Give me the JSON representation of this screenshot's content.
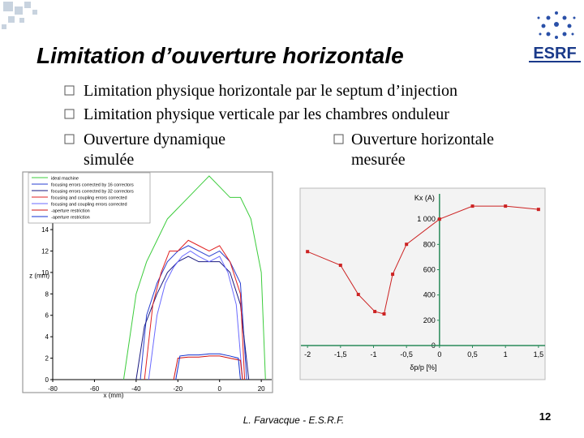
{
  "slide": {
    "logo": "ESRF",
    "title": "Limitation d’ouverture horizontale",
    "bullets": [
      "Limitation physique horizontale par le septum d’injection",
      "Limitation physique verticale par les chambres onduleur"
    ],
    "columns": [
      [
        "Ouverture dynamique",
        "simulée"
      ],
      [
        "Ouverture horizontale",
        "mesurée"
      ]
    ],
    "footer": "L. Farvacque - E.S.R.F.",
    "page": "12"
  },
  "chart_data": [
    {
      "type": "line",
      "xlabel": "x (mm)",
      "ylabel": "z (mm)",
      "xlim": [
        -80,
        25
      ],
      "ylim": [
        0,
        19
      ],
      "xticks": [
        -80,
        -60,
        -40,
        -20,
        0,
        20
      ],
      "yticks": [
        0,
        2,
        4,
        6,
        8,
        10,
        12,
        14
      ],
      "legend": "upper-left",
      "markers": false,
      "series": [
        {
          "name": "ideal machine",
          "color": "#3ccc3c",
          "x": [
            -46,
            -40,
            -35,
            -30,
            -25,
            -20,
            -15,
            -10,
            -5,
            0,
            5,
            10,
            15,
            20,
            22
          ],
          "values": [
            0,
            8,
            11,
            13,
            15,
            16,
            17,
            18,
            19,
            18,
            17,
            17,
            15,
            10,
            0
          ]
        },
        {
          "name": "focusing errors corrected by 16 correctors",
          "color": "#2a3fd0",
          "x": [
            -38,
            -35,
            -30,
            -25,
            -20,
            -15,
            -10,
            -5,
            0,
            5,
            10,
            13
          ],
          "values": [
            0,
            6,
            9,
            11,
            12,
            12.5,
            12,
            11.5,
            12,
            11,
            9,
            0
          ]
        },
        {
          "name": "focusing errors corrected by 32 correctors",
          "color": "#1a1a80",
          "x": [
            -40,
            -36,
            -30,
            -25,
            -20,
            -15,
            -10,
            -5,
            0,
            5,
            10,
            14
          ],
          "values": [
            0,
            5,
            8,
            10,
            11,
            11.5,
            11,
            11,
            11,
            10,
            7,
            0
          ]
        },
        {
          "name": "focusing and coupling errors corrected",
          "color": "#e02020",
          "x": [
            -36,
            -32,
            -28,
            -24,
            -20,
            -15,
            -10,
            -5,
            0,
            5,
            10,
            12
          ],
          "values": [
            0,
            7,
            10,
            12,
            12,
            13,
            12.5,
            12,
            12.5,
            11,
            8,
            0
          ]
        },
        {
          "name": "focusing and coupling errors corrected",
          "color": "#6a6aff",
          "x": [
            -34,
            -30,
            -26,
            -22,
            -18,
            -14,
            -10,
            -5,
            0,
            4,
            8,
            11
          ],
          "values": [
            0,
            6,
            9,
            10.5,
            11.5,
            12,
            11.5,
            11,
            11.5,
            10,
            7,
            0
          ]
        },
        {
          "name": "-aperture restriction",
          "color": "#d01010",
          "x": [
            -22,
            -20,
            -15,
            -10,
            -5,
            0,
            5,
            10,
            11
          ],
          "values": [
            0,
            2,
            2.1,
            2.1,
            2.2,
            2.2,
            2,
            1.8,
            0
          ]
        },
        {
          "name": "-aperture restriction",
          "color": "#1030d0",
          "x": [
            -21,
            -19,
            -15,
            -10,
            -5,
            0,
            5,
            9,
            10
          ],
          "values": [
            0,
            2.2,
            2.3,
            2.3,
            2.4,
            2.4,
            2.2,
            2,
            0
          ]
        }
      ]
    },
    {
      "type": "line",
      "xlabel": "δp/p [%]",
      "ylabel": "Kx (A)",
      "xlim": [
        -2.1,
        1.6
      ],
      "ylim": [
        0,
        1200
      ],
      "xticks": [
        -2,
        {
          "value": -1.5,
          "label": "-1,5"
        },
        -1,
        {
          "value": -0.5,
          "label": "-0,5"
        },
        0,
        {
          "value": 0.5,
          "label": "0,5"
        },
        1,
        {
          "value": 1.5,
          "label": "1,5"
        }
      ],
      "yticks": [
        0,
        200,
        400,
        600,
        800,
        {
          "value": 1000,
          "label": "1 000"
        }
      ],
      "markers": true,
      "series": [
        {
          "color": "#cc2222",
          "x": [
            -2,
            -1.5,
            -1.23,
            -0.98,
            -0.84,
            -0.71,
            -0.5,
            0,
            0.5,
            1,
            1.5
          ],
          "values": [
            743,
            635,
            404,
            269,
            250,
            564,
            801,
            1000,
            1103,
            1103,
            1077
          ]
        }
      ]
    }
  ]
}
